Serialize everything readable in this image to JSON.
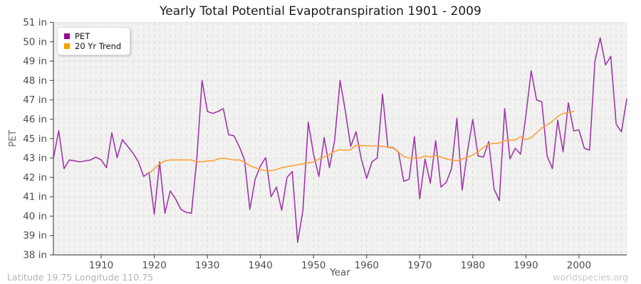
{
  "title": "Yearly Total Potential Evapotranspiration 1901 - 2009",
  "footer": {
    "left": "Latitude 19.75 Longitude 110.75",
    "right": "worldspecies.org"
  },
  "legend": {
    "items": [
      {
        "label": "PET",
        "color": "#990099"
      },
      {
        "label": "20 Yr Trend",
        "color": "#ff9e00"
      }
    ]
  },
  "axes": {
    "x_label": "Year",
    "y_label": "PET",
    "x_tick_years": [
      1910,
      1920,
      1930,
      1940,
      1950,
      1960,
      1970,
      1980,
      1990,
      2000
    ],
    "y_tick_labels": [
      "51 in",
      "50 in",
      "49 in",
      "48 in",
      "47 in",
      "46 in",
      "45 in",
      "43 in",
      "42 in",
      "41 in",
      "40 in",
      "39 in",
      "38 in"
    ],
    "y_tick_values": [
      51,
      50,
      49,
      48,
      47,
      46,
      45,
      43,
      42,
      41,
      40,
      39,
      38
    ]
  },
  "colors": {
    "pet_line": "#a136ab",
    "trend_line": "#ffa133",
    "plot_bg": "#f2f2f1",
    "grid_minor_v": "#dedede",
    "grid_decade_v": "#d3d3d3",
    "grid_h": "#e7e7e7",
    "axis": "#555555",
    "tick_text": "#4d4d4d"
  },
  "chart_data": {
    "type": "line",
    "title": "Yearly Total Potential Evapotranspiration 1901 - 2009",
    "xlabel": "Year",
    "ylabel": "PET",
    "x_range": [
      1901,
      2009
    ],
    "y_axis_note": "rendered axis skips the 44 in tick; 13 tick labels evenly spaced",
    "series": [
      {
        "name": "PET",
        "start_year": 1901,
        "values": [
          43.0,
          45.4,
          42.45,
          42.9,
          42.85,
          42.8,
          42.85,
          42.9,
          43.1,
          42.9,
          42.5,
          45.3,
          43.05,
          44.9,
          44.2,
          43.5,
          42.8,
          42.05,
          42.25,
          40.1,
          42.8,
          40.15,
          41.3,
          40.9,
          40.35,
          40.2,
          40.15,
          42.95,
          48.0,
          46.4,
          46.3,
          46.4,
          46.55,
          45.2,
          45.15,
          44.2,
          42.9,
          40.35,
          41.9,
          42.6,
          43.05,
          41.0,
          41.5,
          40.3,
          42.0,
          42.3,
          38.65,
          40.3,
          45.85,
          43.4,
          42.05,
          45.05,
          42.5,
          44.9,
          48.0,
          46.4,
          44.2,
          45.35,
          42.95,
          41.95,
          42.8,
          43.0,
          47.3,
          44.1,
          44.05,
          43.6,
          41.8,
          41.9,
          45.1,
          40.9,
          42.95,
          41.7,
          44.8,
          41.5,
          41.75,
          42.45,
          46.05,
          41.35,
          43.7,
          46.0,
          43.2,
          43.1,
          44.7,
          41.4,
          40.8,
          46.55,
          42.95,
          44.0,
          43.4,
          46.2,
          48.5,
          47.0,
          46.9,
          43.2,
          42.45,
          45.95,
          43.65,
          46.85,
          45.4,
          45.45,
          44.0,
          43.8,
          49.0,
          50.2,
          48.8,
          49.25,
          45.75,
          45.35,
          47.05
        ]
      },
      {
        "name": "20 Yr Trend",
        "start_year": 1919,
        "values": [
          42.2,
          42.45,
          42.7,
          42.85,
          42.9,
          42.9,
          42.9,
          42.9,
          42.9,
          42.8,
          42.8,
          42.85,
          42.85,
          42.95,
          43.0,
          42.95,
          42.9,
          42.9,
          42.8,
          42.6,
          42.5,
          42.4,
          42.35,
          42.35,
          42.4,
          42.5,
          42.55,
          42.6,
          42.65,
          42.7,
          42.75,
          42.8,
          42.95,
          43.1,
          43.35,
          43.7,
          43.85,
          43.8,
          43.85,
          44.3,
          44.3,
          44.25,
          44.25,
          44.25,
          44.2,
          44.1,
          44.1,
          43.6,
          43.15,
          43.0,
          43.0,
          43.0,
          43.2,
          43.1,
          43.25,
          43.1,
          42.95,
          42.9,
          42.85,
          42.95,
          43.1,
          43.3,
          43.65,
          44.1,
          44.45,
          44.5,
          44.55,
          44.8,
          44.85,
          44.85,
          45.1,
          44.9,
          45.05,
          45.3,
          45.55,
          45.7,
          45.9,
          46.15,
          46.3,
          46.35,
          46.4
        ]
      }
    ]
  }
}
